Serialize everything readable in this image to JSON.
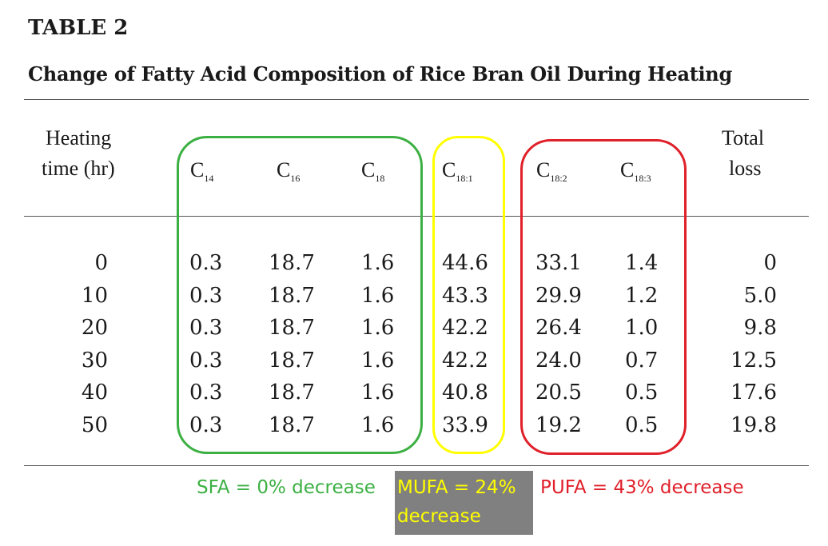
{
  "table": {
    "label": "TABLE 2",
    "title": "Change of Fatty Acid Composition of Rice Bran Oil During Heating",
    "headers": {
      "heating_line1": "Heating",
      "heating_line2": "time (hr)",
      "c14": {
        "base": "C",
        "sub": "14"
      },
      "c16": {
        "base": "C",
        "sub": "16"
      },
      "c18": {
        "base": "C",
        "sub": "18"
      },
      "c18_1": {
        "base": "C",
        "sub": "18:1"
      },
      "c18_2": {
        "base": "C",
        "sub": "18:2"
      },
      "c18_3": {
        "base": "C",
        "sub": "18:3"
      },
      "total_line1": "Total",
      "total_line2": "loss"
    },
    "rows": [
      {
        "time": "0",
        "c14": "0.3",
        "c16": "18.7",
        "c18": "1.6",
        "c18_1": "44.6",
        "c18_2": "33.1",
        "c18_3": "1.4",
        "total": "0"
      },
      {
        "time": "10",
        "c14": "0.3",
        "c16": "18.7",
        "c18": "1.6",
        "c18_1": "43.3",
        "c18_2": "29.9",
        "c18_3": "1.2",
        "total": "5.0"
      },
      {
        "time": "20",
        "c14": "0.3",
        "c16": "18.7",
        "c18": "1.6",
        "c18_1": "42.2",
        "c18_2": "26.4",
        "c18_3": "1.0",
        "total": "9.8"
      },
      {
        "time": "30",
        "c14": "0.3",
        "c16": "18.7",
        "c18": "1.6",
        "c18_1": "42.2",
        "c18_2": "24.0",
        "c18_3": "0.7",
        "total": "12.5"
      },
      {
        "time": "40",
        "c14": "0.3",
        "c16": "18.7",
        "c18": "1.6",
        "c18_1": "40.8",
        "c18_2": "20.5",
        "c18_3": "0.5",
        "total": "17.6"
      },
      {
        "time": "50",
        "c14": "0.3",
        "c16": "18.7",
        "c18": "1.6",
        "c18_1": "33.9",
        "c18_2": "19.2",
        "c18_3": "0.5",
        "total": "19.8"
      }
    ]
  },
  "annotations": {
    "sfa": "SFA = 0% decrease",
    "mufa_line1": "MUFA = 24%",
    "mufa_line2": "decrease",
    "pufa": "PUFA = 43% decrease"
  },
  "colors": {
    "sfa_box": "#3cb043",
    "mufa_box": "#ffff00",
    "pufa_box": "#e0202a",
    "sfa_text": "#3cb043",
    "mufa_text": "#ffff00",
    "mufa_bg": "#808080",
    "pufa_text": "#e0202a"
  }
}
